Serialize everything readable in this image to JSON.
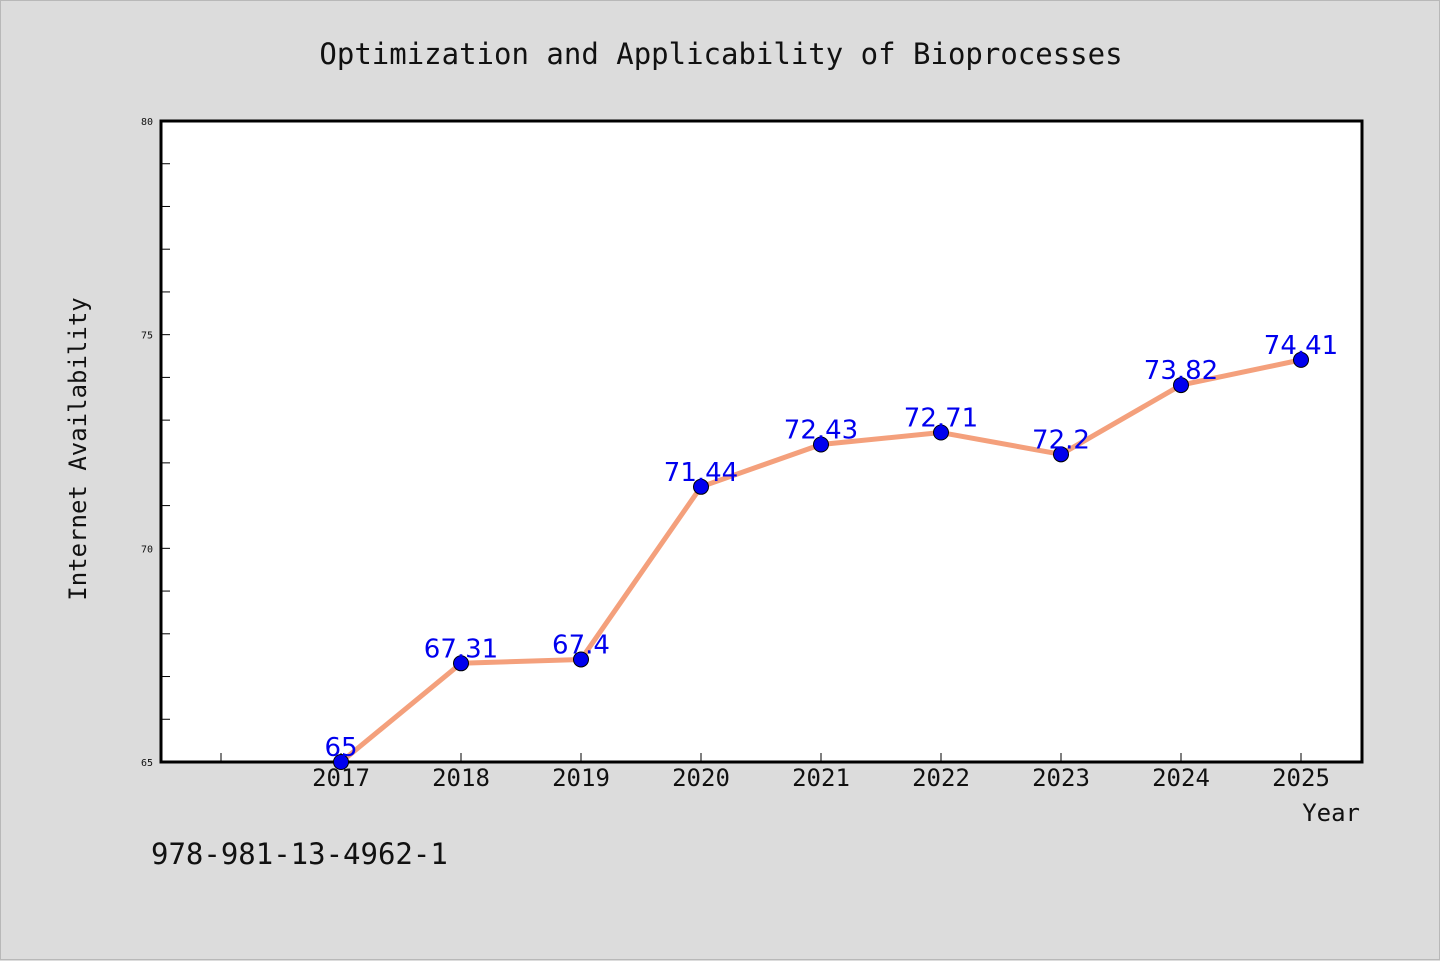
{
  "chart_data": {
    "type": "line",
    "title": "Optimization and Applicability of Bioprocesses",
    "xlabel": "Year",
    "ylabel": "Internet Availability",
    "categories": [
      "2017",
      "2018",
      "2019",
      "2020",
      "2021",
      "2022",
      "2023",
      "2024",
      "2025"
    ],
    "values": [
      65,
      67.31,
      67.4,
      71.44,
      72.43,
      72.71,
      72.2,
      73.82,
      74.41
    ],
    "data_labels": [
      "65",
      "67.31",
      "67.4",
      "71.44",
      "72.43",
      "72.71",
      "72.2",
      "73.82",
      "74.41"
    ],
    "ylim": [
      65,
      80
    ],
    "yticks": [
      "65",
      "70",
      "75",
      "80"
    ],
    "grid": false,
    "line_color": "#f4a07c",
    "marker_color": "#0000ee",
    "label_color": "#0000ee"
  },
  "footer": {
    "isbn": "978-981-13-4962-1"
  }
}
